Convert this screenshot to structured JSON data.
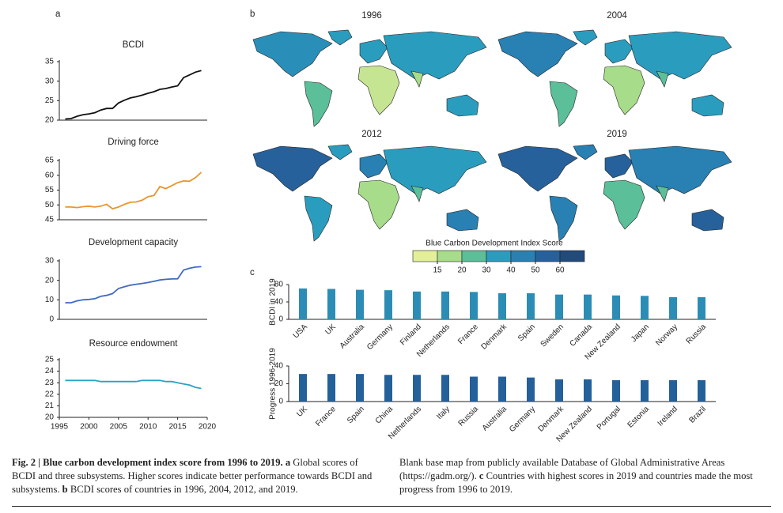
{
  "panel_labels": [
    "a",
    "b",
    "c"
  ],
  "chart_data": [
    {
      "type": "line",
      "title": "BCDI",
      "color": "#111111",
      "x": [
        1996,
        1997,
        1998,
        1999,
        2000,
        2001,
        2002,
        2003,
        2004,
        2005,
        2006,
        2007,
        2008,
        2009,
        2010,
        2011,
        2012,
        2013,
        2014,
        2015,
        2016,
        2017,
        2018,
        2019
      ],
      "values": [
        20.3,
        20.4,
        21.0,
        21.4,
        21.6,
        21.9,
        22.6,
        23.0,
        23.0,
        24.4,
        25.1,
        25.7,
        26.0,
        26.4,
        26.9,
        27.3,
        27.9,
        28.1,
        28.5,
        28.8,
        30.9,
        31.6,
        32.3,
        32.7
      ],
      "xlim": [
        1995,
        2020
      ],
      "ylim": [
        20,
        35
      ],
      "yticks": [
        20,
        25,
        30,
        35
      ]
    },
    {
      "type": "line",
      "title": "Driving force",
      "color": "#e8962e",
      "x": [
        1996,
        1997,
        1998,
        1999,
        2000,
        2001,
        2002,
        2003,
        2004,
        2005,
        2006,
        2007,
        2008,
        2009,
        2010,
        2011,
        2012,
        2013,
        2014,
        2015,
        2016,
        2017,
        2018,
        2019
      ],
      "values": [
        49.3,
        49.3,
        49.1,
        49.4,
        49.6,
        49.3,
        49.6,
        50.2,
        48.7,
        49.3,
        50.2,
        50.9,
        51.0,
        51.6,
        52.8,
        53.2,
        56.2,
        55.5,
        56.5,
        57.5,
        58.1,
        58.0,
        59.2,
        61.0
      ],
      "xlim": [
        1995,
        2020
      ],
      "ylim": [
        45,
        65
      ],
      "yticks": [
        45,
        50,
        55,
        60,
        65
      ]
    },
    {
      "type": "line",
      "title": "Development capacity",
      "color": "#4169c4",
      "x": [
        1996,
        1997,
        1998,
        1999,
        2000,
        2001,
        2002,
        2003,
        2004,
        2005,
        2006,
        2007,
        2008,
        2009,
        2010,
        2011,
        2012,
        2013,
        2014,
        2015,
        2016,
        2017,
        2018,
        2019
      ],
      "values": [
        8.5,
        8.5,
        9.5,
        10.0,
        10.2,
        10.6,
        11.8,
        12.3,
        13.2,
        15.8,
        16.7,
        17.5,
        18.0,
        18.4,
        18.9,
        19.5,
        20.2,
        20.5,
        20.7,
        20.8,
        25.3,
        26.2,
        26.8,
        27.0
      ],
      "xlim": [
        1995,
        2020
      ],
      "ylim": [
        0,
        30
      ],
      "yticks": [
        0,
        10,
        20,
        30
      ]
    },
    {
      "type": "line",
      "title": "Resource endowment",
      "color": "#2aa3c4",
      "x": [
        1996,
        1997,
        1998,
        1999,
        2000,
        2001,
        2002,
        2003,
        2004,
        2005,
        2006,
        2007,
        2008,
        2009,
        2010,
        2011,
        2012,
        2013,
        2014,
        2015,
        2016,
        2017,
        2018,
        2019
      ],
      "values": [
        23.2,
        23.2,
        23.2,
        23.2,
        23.2,
        23.2,
        23.1,
        23.1,
        23.1,
        23.1,
        23.1,
        23.1,
        23.1,
        23.2,
        23.2,
        23.2,
        23.2,
        23.1,
        23.1,
        23.0,
        22.9,
        22.8,
        22.6,
        22.5
      ],
      "xlim": [
        1995,
        2020
      ],
      "xticks": [
        1995,
        2000,
        2005,
        2010,
        2015,
        2020
      ],
      "ylim": [
        20,
        25
      ],
      "yticks": [
        20,
        21,
        22,
        23,
        24,
        25
      ]
    },
    {
      "type": "bar",
      "ylabel": "BCDI in 2019",
      "color": "#2b8db5",
      "categories": [
        "USA",
        "UK",
        "Australia",
        "Germany",
        "Finland",
        "Netherlands",
        "France",
        "Denmark",
        "Spain",
        "Sweden",
        "Canada",
        "New Zealand",
        "Japan",
        "Norway",
        "Russia"
      ],
      "values": [
        71,
        70,
        68,
        67,
        64,
        64,
        63,
        60,
        60,
        57,
        57,
        55,
        54,
        51,
        51
      ],
      "ylim": [
        0,
        80
      ],
      "yticks": [
        0,
        40,
        80
      ]
    },
    {
      "type": "bar",
      "ylabel": "Progress 1996-2019",
      "color": "#24609a",
      "categories": [
        "UK",
        "France",
        "Spain",
        "China",
        "Netherlands",
        "Italy",
        "Russia",
        "Australia",
        "Germany",
        "Denmark",
        "New Zealand",
        "Portugal",
        "Estonia",
        "Ireland",
        "Brazil"
      ],
      "values": [
        31,
        31,
        31,
        30,
        30,
        30,
        28,
        28,
        27,
        25,
        25,
        24,
        24,
        24,
        24
      ],
      "ylim": [
        0,
        40
      ],
      "yticks": [
        0,
        20,
        40
      ]
    }
  ],
  "maps": {
    "titles": [
      "1996",
      "2004",
      "2012",
      "2019"
    ]
  },
  "colorbar": {
    "title": "Blue Carbon Development Index Score",
    "ticks": [
      15,
      20,
      30,
      40,
      50,
      60
    ],
    "colors": [
      "#e4ef9a",
      "#a7dc8a",
      "#5bbf9a",
      "#2a9dbf",
      "#2880b3",
      "#27619b",
      "#224a7a"
    ]
  },
  "caption": {
    "left": [
      {
        "text": "Fig. 2 | Blue carbon development index score from 1996 to 2019.",
        "bold": true
      },
      {
        "text": " a",
        "bold": true
      },
      {
        "text": " Global scores of BCDI and three subsystems. Higher scores indicate better performance towards BCDI and subsystems.",
        "bold": false
      },
      {
        "text": " b",
        "bold": true
      },
      {
        "text": " BCDI scores of countries in 1996, 2004, 2012, and 2019.",
        "bold": false
      }
    ],
    "right": [
      {
        "text": "Blank base map from publicly available Database of Global Administrative Areas (https://gadm.org/).",
        "bold": false
      },
      {
        "text": " c",
        "bold": true
      },
      {
        "text": " Countries with highest scores in 2019 and countries made the most progress from 1996 to 2019.",
        "bold": false
      }
    ]
  }
}
